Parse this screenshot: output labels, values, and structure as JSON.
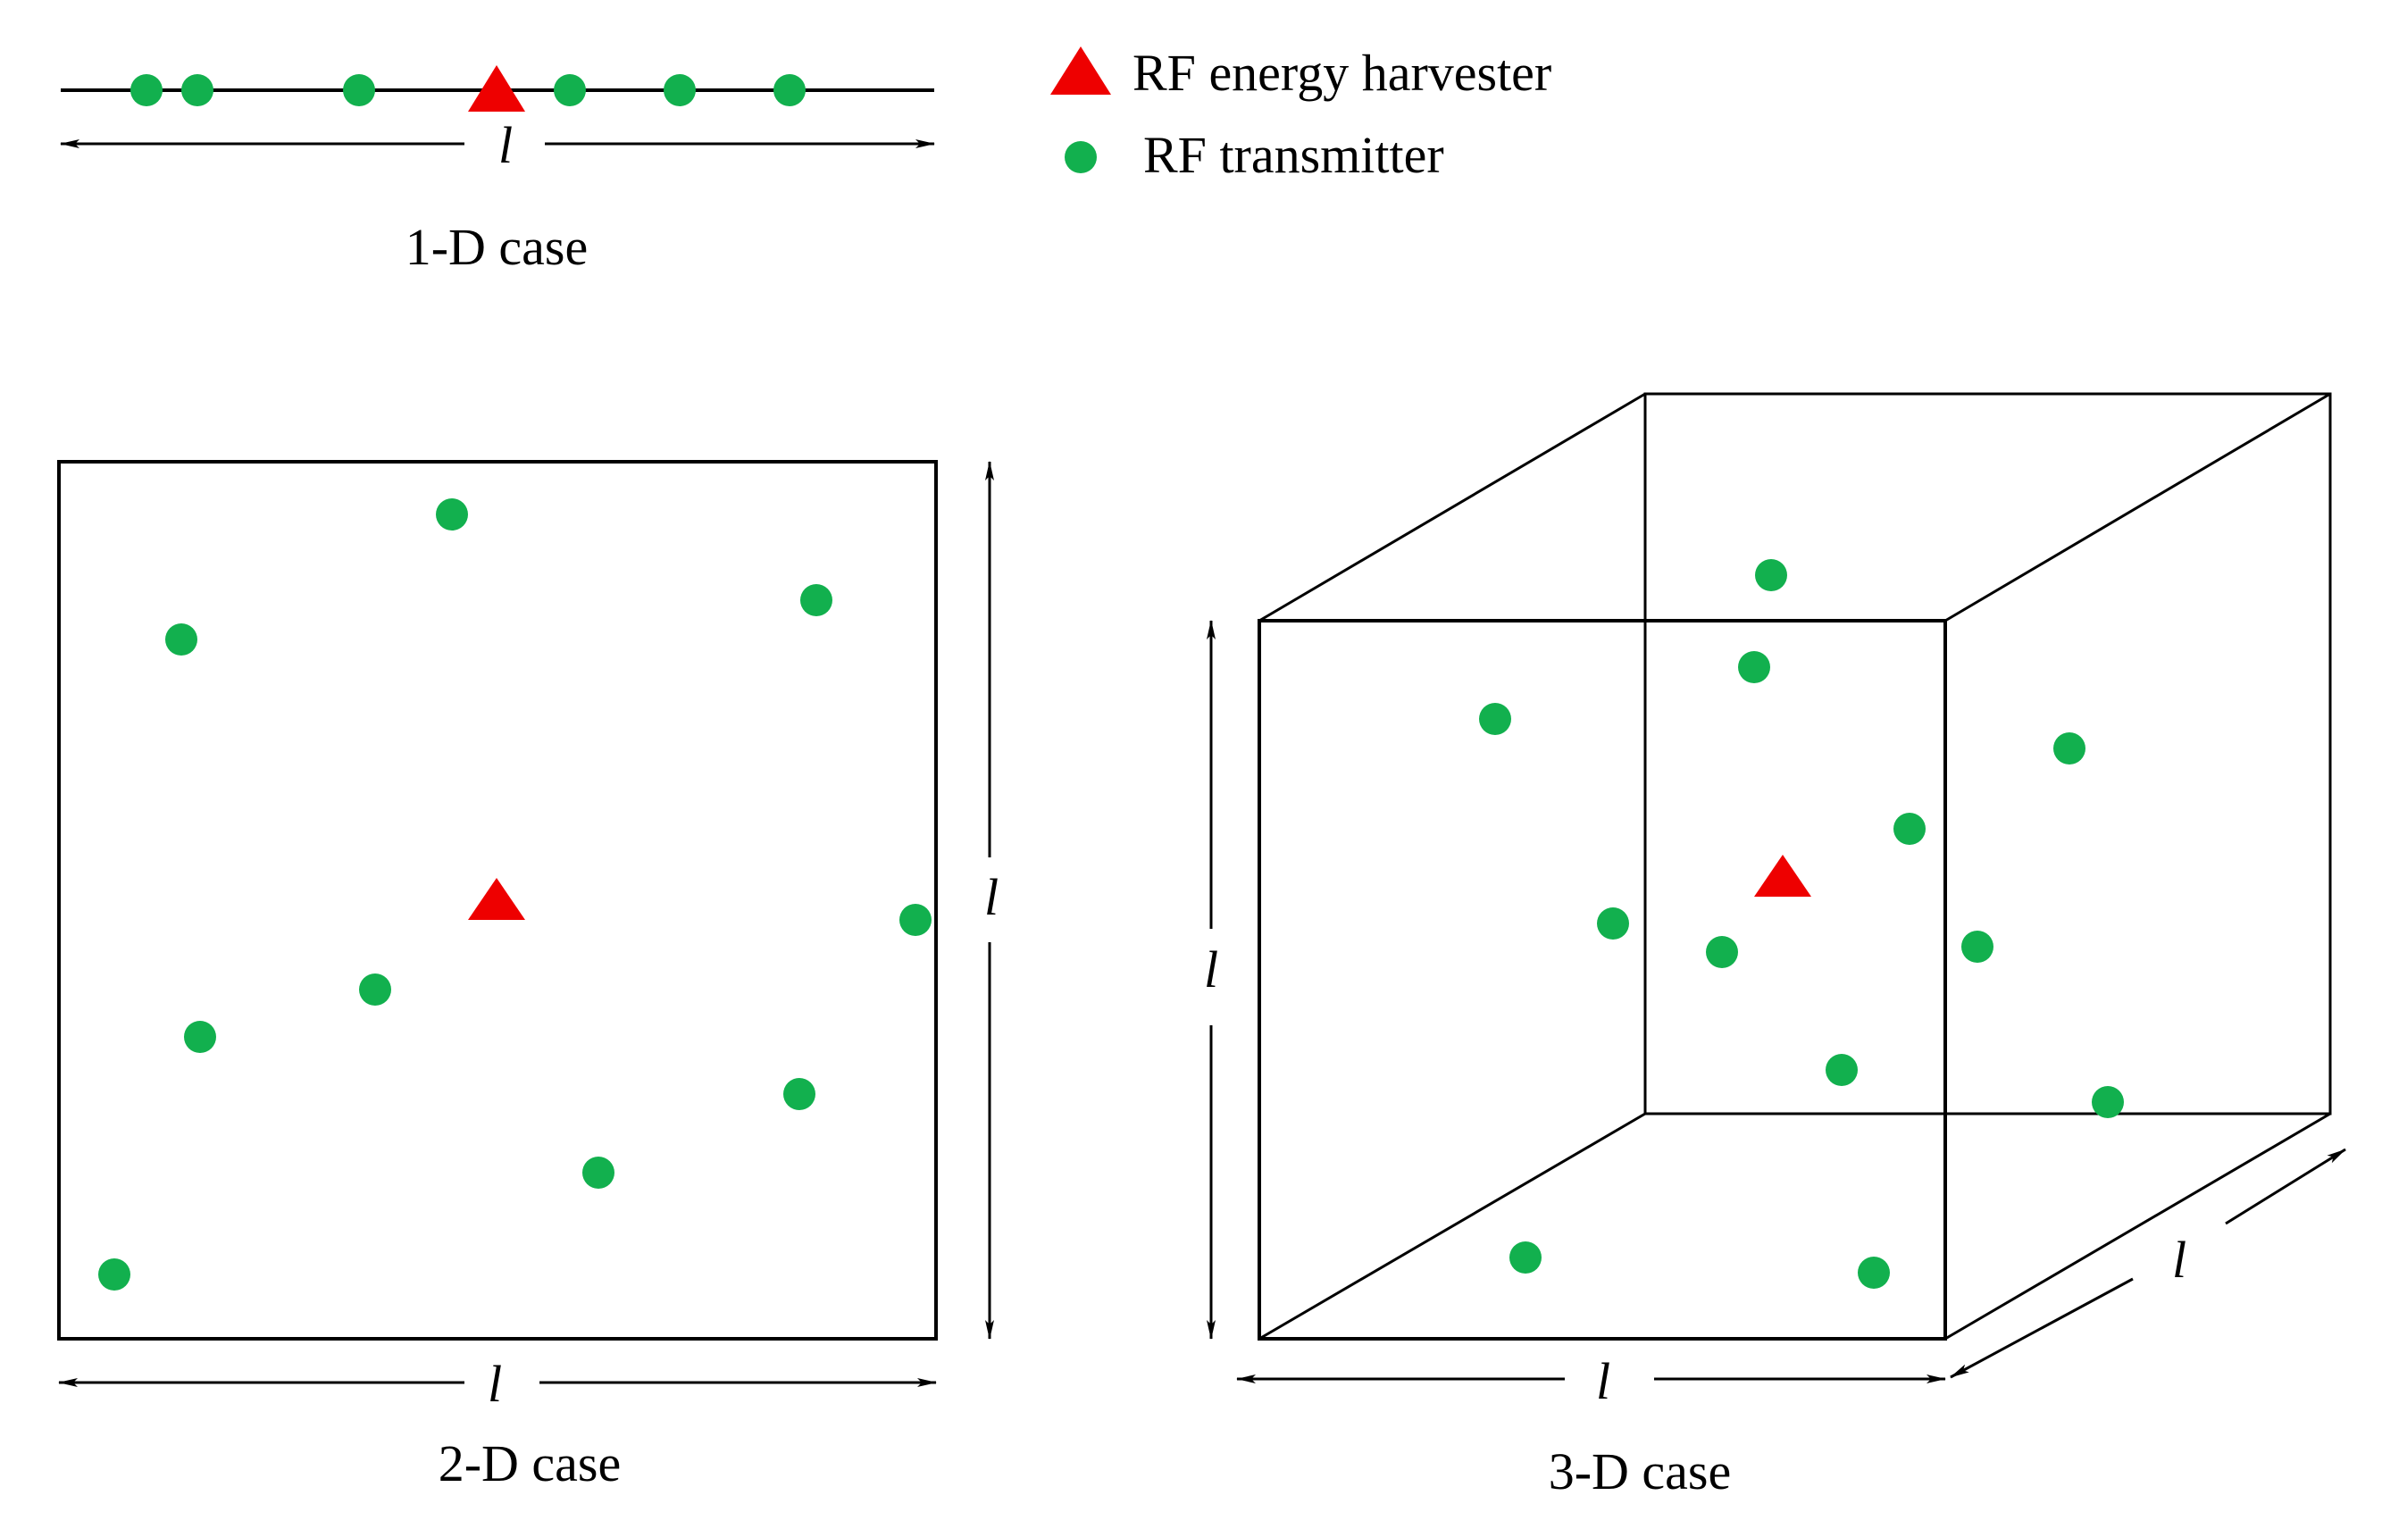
{
  "legend": {
    "harvester_label": "RF energy harvester",
    "transmitter_label": "RF transmitter"
  },
  "captions": {
    "one_d": "1-D case",
    "two_d": "2-D case",
    "three_d": "3-D case"
  },
  "dimension_label": "l",
  "colors": {
    "harvester": "#ee0000",
    "transmitter": "#12b04e",
    "line": "#000000"
  },
  "icons": {
    "harvester": "triangle-marker-icon",
    "transmitter": "circle-marker-icon"
  }
}
